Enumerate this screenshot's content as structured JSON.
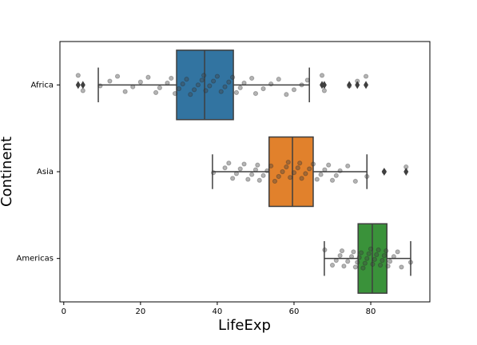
{
  "chart_data": {
    "type": "box",
    "orientation": "horizontal",
    "x_label": "LifeExp",
    "y_label": "Continent",
    "xlim": [
      -1,
      95.4
    ],
    "xticks": [
      0,
      20,
      40,
      60,
      80
    ],
    "categories": [
      "Africa",
      "Asia",
      "Americas"
    ],
    "boxes": [
      {
        "color": "#3274a1",
        "whislo": 9,
        "q1": 29.4,
        "med": 36.7,
        "q3": 44.2,
        "whishi": 64,
        "fliers": [
          3.75,
          5,
          67.3,
          67.9,
          74.4,
          76.5,
          78.75
        ],
        "points": [
          3.75,
          5,
          9.5,
          12,
          14,
          16,
          18,
          20,
          22,
          24,
          25,
          27,
          28,
          29,
          30,
          31,
          32,
          33,
          34,
          35,
          36,
          36.5,
          37,
          38,
          39,
          40,
          41,
          42,
          43,
          44,
          45,
          46,
          47,
          49,
          50,
          52,
          54,
          56,
          58,
          60,
          62,
          63.5,
          67.3,
          67.9,
          74.4,
          76.5,
          78.75
        ]
      },
      {
        "color": "#e1812c",
        "whislo": 38.75,
        "q1": 53.5,
        "med": 59.6,
        "q3": 65,
        "whishi": 79,
        "fliers": [
          83.5,
          89.2
        ],
        "points": [
          39,
          42,
          43,
          44,
          45,
          46,
          47,
          48,
          49,
          50,
          50.5,
          51,
          52,
          53,
          54,
          55,
          56,
          57,
          58,
          58.5,
          59,
          60,
          61,
          61.5,
          62,
          63,
          64,
          65,
          66,
          67,
          68,
          69,
          70,
          71,
          72,
          74,
          76,
          79,
          83.5,
          89.2
        ]
      },
      {
        "color": "#3a923a",
        "whislo": 67.9,
        "q1": 76.7,
        "med": 80.4,
        "q3": 84.2,
        "whishi": 90.4,
        "fliers": [],
        "points": [
          68,
          70,
          71,
          72,
          72.5,
          73,
          74,
          75,
          75.5,
          76,
          76.5,
          77,
          77.5,
          78,
          78.5,
          79,
          79.5,
          80,
          80.5,
          81,
          81.5,
          82,
          82.5,
          83,
          83.5,
          84,
          84.5,
          85,
          86,
          87,
          88,
          90.4
        ]
      }
    ]
  }
}
